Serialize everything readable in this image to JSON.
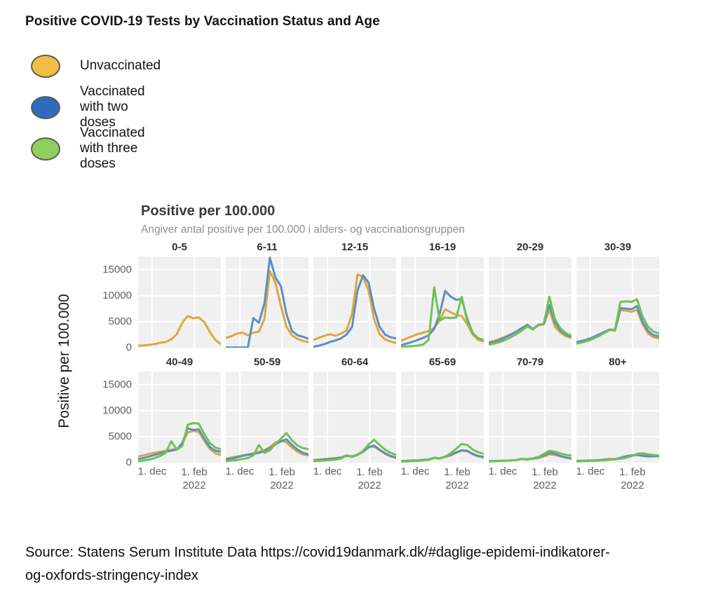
{
  "page_title": "Positive COVID-19 Tests by Vaccination Status and Age",
  "legend": {
    "swatch_border_color": "#5d5d50",
    "items": [
      {
        "label": "Unvaccinated",
        "swatch_color": "#F0BE45",
        "series": "unvaccinated"
      },
      {
        "label": "Vaccinated with two doses",
        "swatch_color": "#2E6AC0",
        "series": "two_doses"
      },
      {
        "label": "Vaccinated with three doses",
        "swatch_color": "#90CF5F",
        "series": "three_doses"
      }
    ]
  },
  "source": {
    "line1": "Source: Statens Serum Institute Data https://covid19danmark.dk/#daglige-epidemi-indikatorer-",
    "line2": "og-oxfords-stringency-index"
  },
  "chart_data": {
    "type": "line",
    "title": "Positive per 100.000",
    "subtitle": "Angiver antal positive per 100.000 i alders- og vaccinationsgruppen",
    "ylabel": "Positive per 100.000",
    "ylim": [
      0,
      17500
    ],
    "yticks": [
      0,
      5000,
      10000,
      15000
    ],
    "grid": true,
    "panel_bg": "#F0F0F0",
    "grid_line_color": "#FFFFFF",
    "xticks": {
      "labels": [
        "1. dec",
        "1. feb"
      ],
      "year_label": "2022",
      "positions": [
        0.17,
        0.68
      ]
    },
    "series_order": [
      "unvaccinated",
      "two_doses",
      "three_doses"
    ],
    "series_colors": {
      "unvaccinated": "#DFA63E",
      "two_doses": "#5A8FC8",
      "three_doses": "#6FC351"
    },
    "panels": [
      {
        "age": "0-5",
        "series": {
          "unvaccinated": [
            400,
            450,
            550,
            700,
            950,
            1100,
            1600,
            2600,
            4800,
            6100,
            5650,
            5800,
            4900,
            3000,
            1500,
            700
          ]
        }
      },
      {
        "age": "6-11",
        "series": {
          "unvaccinated": [
            1900,
            2200,
            2700,
            2900,
            2400,
            2900,
            3100,
            5500,
            14700,
            12500,
            8000,
            4000,
            2400,
            1700,
            1300,
            1050
          ],
          "two_doses": [
            50,
            50,
            50,
            50,
            50,
            5700,
            4800,
            8500,
            17300,
            13500,
            11800,
            6500,
            3200,
            2400,
            2100,
            1700
          ]
        }
      },
      {
        "age": "12-15",
        "series": {
          "unvaccinated": [
            1500,
            1900,
            2300,
            2600,
            2300,
            2700,
            3300,
            6500,
            14100,
            13600,
            11000,
            5500,
            2600,
            1600,
            1200,
            900
          ],
          "two_doses": [
            200,
            400,
            700,
            1100,
            1400,
            1800,
            2500,
            4000,
            11000,
            13900,
            12500,
            7500,
            4000,
            2500,
            2000,
            1800
          ]
        }
      },
      {
        "age": "16-19",
        "series": {
          "unvaccinated": [
            1300,
            1800,
            2200,
            2600,
            2900,
            3200,
            3800,
            5200,
            7400,
            6800,
            6300,
            6100,
            4500,
            2500,
            1500,
            1200
          ],
          "two_doses": [
            500,
            800,
            1100,
            1500,
            1900,
            2400,
            3600,
            6500,
            10900,
            9800,
            9200,
            9400,
            5500,
            2800,
            1800,
            1500
          ],
          "three_doses": [
            200,
            250,
            300,
            400,
            600,
            1500,
            11600,
            5200,
            5800,
            5700,
            5800,
            9800,
            5000,
            2800,
            1800,
            1400
          ]
        }
      },
      {
        "age": "20-29",
        "series": {
          "unvaccinated": [
            1100,
            1300,
            1700,
            2100,
            2600,
            3100,
            3700,
            4200,
            3500,
            4300,
            4500,
            7300,
            4000,
            2900,
            2200,
            1900
          ],
          "two_doses": [
            900,
            1100,
            1500,
            2000,
            2500,
            3100,
            3800,
            4400,
            3600,
            4400,
            4600,
            8200,
            4800,
            3300,
            2500,
            2100
          ],
          "three_doses": [
            600,
            800,
            1100,
            1500,
            2000,
            2600,
            3300,
            4100,
            3500,
            4300,
            4700,
            9800,
            5500,
            3700,
            2800,
            2300
          ]
        }
      },
      {
        "age": "30-39",
        "series": {
          "unvaccinated": [
            1000,
            1200,
            1500,
            1900,
            2400,
            2900,
            3400,
            3300,
            7200,
            7100,
            6900,
            7300,
            4500,
            2700,
            2000,
            1800
          ],
          "two_doses": [
            1100,
            1300,
            1600,
            2000,
            2500,
            3000,
            3500,
            3400,
            7600,
            7500,
            7400,
            8000,
            5000,
            3200,
            2400,
            2200
          ],
          "three_doses": [
            800,
            1000,
            1300,
            1700,
            2200,
            2800,
            3400,
            3500,
            8800,
            8900,
            8800,
            9300,
            6000,
            4000,
            3100,
            2700
          ]
        }
      },
      {
        "age": "40-49",
        "series": {
          "unvaccinated": [
            1200,
            1400,
            1700,
            1900,
            2100,
            2300,
            2500,
            2600,
            3600,
            5800,
            6100,
            5900,
            4200,
            2600,
            1800,
            1500
          ],
          "two_doses": [
            700,
            900,
            1200,
            1500,
            1800,
            2100,
            2300,
            2500,
            3800,
            6600,
            6300,
            6400,
            4600,
            3000,
            2300,
            2100
          ],
          "three_doses": [
            300,
            400,
            600,
            900,
            1300,
            1900,
            4100,
            2500,
            3200,
            7300,
            7600,
            7500,
            5500,
            3800,
            2900,
            2600
          ]
        }
      },
      {
        "age": "50-59",
        "series": {
          "unvaccinated": [
            800,
            1000,
            1200,
            1400,
            1600,
            1800,
            2100,
            2400,
            3000,
            3900,
            4300,
            3900,
            2900,
            2100,
            1600,
            1400
          ],
          "two_doses": [
            600,
            800,
            1000,
            1300,
            1500,
            1700,
            1900,
            2200,
            2800,
            3500,
            4100,
            4500,
            3400,
            2500,
            1900,
            1600
          ],
          "three_doses": [
            300,
            400,
            500,
            700,
            900,
            1400,
            3400,
            1900,
            2400,
            3600,
            4600,
            5700,
            4300,
            3300,
            2800,
            2600
          ]
        }
      },
      {
        "age": "60-64",
        "series": {
          "unvaccinated": [
            500,
            600,
            700,
            800,
            900,
            1000,
            1400,
            1200,
            1600,
            2200,
            2900,
            3100,
            2400,
            1700,
            1200,
            900
          ],
          "two_doses": [
            400,
            500,
            600,
            700,
            800,
            1000,
            1300,
            1200,
            1500,
            2100,
            3000,
            3300,
            2500,
            1800,
            1300,
            1000
          ],
          "three_doses": [
            300,
            350,
            400,
            500,
            600,
            800,
            1400,
            1100,
            1500,
            2300,
            3500,
            4400,
            3400,
            2500,
            1900,
            1500
          ]
        }
      },
      {
        "age": "65-69",
        "series": {
          "unvaccinated": [
            300,
            350,
            400,
            450,
            500,
            600,
            900,
            800,
            1100,
            1400,
            1900,
            2300,
            2200,
            1600,
            1200,
            1000
          ],
          "two_doses": [
            300,
            350,
            400,
            450,
            550,
            650,
            950,
            850,
            1150,
            1500,
            2000,
            2400,
            2300,
            1700,
            1300,
            1100
          ],
          "three_doses": [
            200,
            250,
            300,
            350,
            450,
            550,
            900,
            800,
            1200,
            1800,
            2700,
            3600,
            3400,
            2500,
            2000,
            1700
          ]
        }
      },
      {
        "age": "70-79",
        "series": {
          "unvaccinated": [
            300,
            320,
            350,
            380,
            420,
            480,
            700,
            600,
            750,
            900,
            1200,
            1600,
            1500,
            1200,
            1000,
            900
          ],
          "two_doses": [
            300,
            320,
            360,
            400,
            450,
            520,
            750,
            650,
            800,
            1000,
            1400,
            1900,
            1700,
            1300,
            1000,
            800
          ],
          "three_doses": [
            250,
            280,
            320,
            360,
            420,
            500,
            750,
            700,
            850,
            1100,
            1700,
            2300,
            2100,
            1800,
            1500,
            1400
          ]
        }
      },
      {
        "age": "80+",
        "series": {
          "unvaccinated": [
            300,
            320,
            350,
            400,
            450,
            600,
            750,
            650,
            800,
            1000,
            1300,
            1600,
            1500,
            1300,
            1250,
            1200
          ],
          "two_doses": [
            350,
            380,
            400,
            430,
            480,
            550,
            650,
            700,
            950,
            1250,
            1400,
            1500,
            1300,
            1200,
            1250,
            1300
          ],
          "three_doses": [
            250,
            280,
            320,
            360,
            400,
            450,
            550,
            650,
            750,
            950,
            1250,
            1700,
            1800,
            1600,
            1500,
            1400
          ]
        }
      }
    ]
  }
}
